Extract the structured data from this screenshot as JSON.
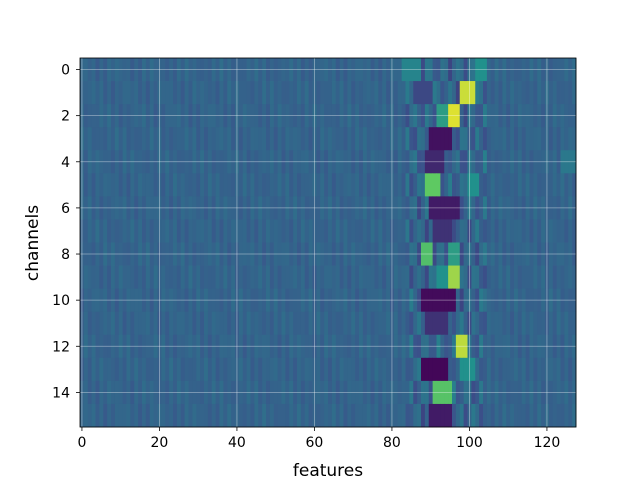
{
  "chart_data": {
    "type": "heatmap",
    "title": "",
    "xlabel": "features",
    "ylabel": "channels",
    "xlim": [
      -0.5,
      127.5
    ],
    "ylim": [
      15.5,
      -0.5
    ],
    "n_rows": 16,
    "n_cols": 128,
    "x_ticks": [
      0,
      20,
      40,
      60,
      80,
      100,
      120
    ],
    "y_ticks": [
      0,
      2,
      4,
      6,
      8,
      10,
      12,
      14
    ],
    "grid": true,
    "colormap": "viridis",
    "background_value": 0.32,
    "hotspots": [
      {
        "row": 0,
        "col_start": 83,
        "col_end": 87,
        "value": 0.45
      },
      {
        "row": 0,
        "col_start": 102,
        "col_end": 104,
        "value": 0.5
      },
      {
        "row": 1,
        "col_start": 98,
        "col_end": 101,
        "value": 0.92
      },
      {
        "row": 1,
        "col_start": 86,
        "col_end": 90,
        "value": 0.22
      },
      {
        "row": 2,
        "col_start": 95,
        "col_end": 97,
        "value": 0.95
      },
      {
        "row": 2,
        "col_start": 92,
        "col_end": 94,
        "value": 0.55
      },
      {
        "row": 3,
        "col_start": 90,
        "col_end": 95,
        "value": 0.05
      },
      {
        "row": 4,
        "col_start": 89,
        "col_end": 93,
        "value": 0.12
      },
      {
        "row": 4,
        "col_start": 124,
        "col_end": 127,
        "value": 0.4
      },
      {
        "row": 5,
        "col_start": 89,
        "col_end": 92,
        "value": 0.75
      },
      {
        "row": 5,
        "col_start": 100,
        "col_end": 102,
        "value": 0.5
      },
      {
        "row": 6,
        "col_start": 90,
        "col_end": 97,
        "value": 0.08
      },
      {
        "row": 7,
        "col_start": 91,
        "col_end": 95,
        "value": 0.15
      },
      {
        "row": 8,
        "col_start": 88,
        "col_end": 90,
        "value": 0.7
      },
      {
        "row": 8,
        "col_start": 95,
        "col_end": 97,
        "value": 0.55
      },
      {
        "row": 9,
        "col_start": 95,
        "col_end": 97,
        "value": 0.85
      },
      {
        "row": 9,
        "col_start": 92,
        "col_end": 94,
        "value": 0.5
      },
      {
        "row": 10,
        "col_start": 88,
        "col_end": 96,
        "value": 0.03
      },
      {
        "row": 11,
        "col_start": 89,
        "col_end": 94,
        "value": 0.15
      },
      {
        "row": 12,
        "col_start": 97,
        "col_end": 99,
        "value": 0.9
      },
      {
        "row": 13,
        "col_start": 88,
        "col_end": 94,
        "value": 0.02
      },
      {
        "row": 13,
        "col_start": 98,
        "col_end": 101,
        "value": 0.5
      },
      {
        "row": 14,
        "col_start": 91,
        "col_end": 95,
        "value": 0.72
      },
      {
        "row": 15,
        "col_start": 90,
        "col_end": 95,
        "value": 0.08
      }
    ]
  }
}
